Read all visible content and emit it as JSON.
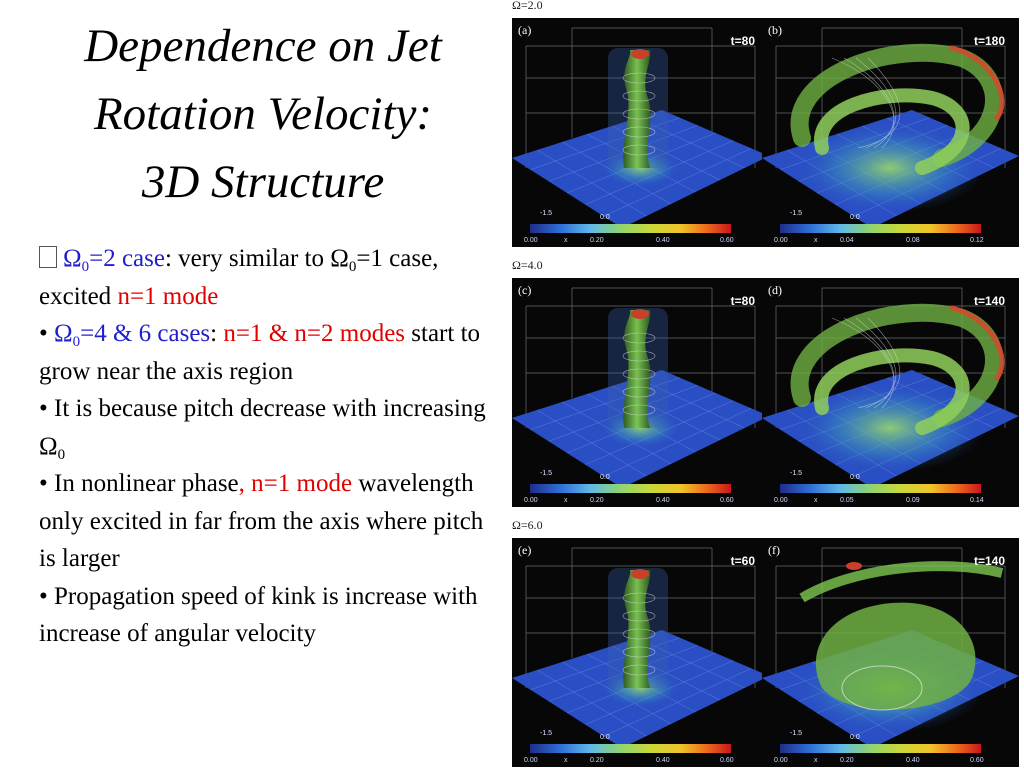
{
  "title": {
    "line1": "Dependence on Jet",
    "line2": "Rotation Velocity:",
    "line3": "3D Structure"
  },
  "bullets": {
    "b1": {
      "omega": "Ω",
      "sub0": "0",
      "case_value": "=2 case",
      "text_a": ": very similar to ",
      "omega_b": "Ω",
      "sub0_b": "0",
      "text_b": "=1 case,  excited ",
      "mode": "n=1 mode"
    },
    "b2": {
      "bullet": "• ",
      "omega": "Ω",
      "sub0": "0",
      "cases": "=4 & 6 cases",
      "colon": ": ",
      "modes": "n=1 & n=2 modes",
      "rest": " start to grow near the axis region"
    },
    "b3": {
      "text": "• It is because pitch decrease with increasing ",
      "omega": "Ω",
      "sub0": "0"
    },
    "b4": {
      "text_a": "• In nonlinear phase",
      "mode": ", n=1 mode",
      "text_b": " wavelength only excited in far from the axis where pitch is larger"
    },
    "b5": {
      "text": "• Propagation speed of kink is increase with increase of angular velocity"
    }
  },
  "figure": {
    "rows": [
      {
        "label": "Ω=2.0",
        "panels": [
          {
            "letter": "(a)",
            "time": "t=80",
            "ticks": [
              "0.00",
              "0.20",
              "0.40",
              "0.60"
            ],
            "axis_a": "-1.5",
            "axis_b": "0.0",
            "axis_x": "x"
          },
          {
            "letter": "(b)",
            "time": "t=180",
            "ticks": [
              "0.00",
              "0.04",
              "0.08",
              "0.12"
            ],
            "axis_a": "-1.5",
            "axis_b": "0.0",
            "axis_x": "x"
          }
        ]
      },
      {
        "label": "Ω=4.0",
        "panels": [
          {
            "letter": "(c)",
            "time": "t=80",
            "ticks": [
              "0.00",
              "0.20",
              "0.40",
              "0.60"
            ],
            "axis_a": "-1.5",
            "axis_b": "0.0",
            "axis_x": "x"
          },
          {
            "letter": "(d)",
            "time": "t=140",
            "ticks": [
              "0.00",
              "0.05",
              "0.09",
              "0.14"
            ],
            "axis_a": "-1.5",
            "axis_b": "0.0",
            "axis_x": "x"
          }
        ]
      },
      {
        "label": "Ω=6.0",
        "panels": [
          {
            "letter": "(e)",
            "time": "t=60",
            "ticks": [
              "0.00",
              "0.20",
              "0.40",
              "0.60"
            ],
            "axis_a": "-1.5",
            "axis_b": "0.0",
            "axis_x": "x"
          },
          {
            "letter": "(f)",
            "time": "t=140",
            "ticks": [
              "0.00",
              "0.20",
              "0.40",
              "0.60"
            ],
            "axis_a": "-1.5",
            "axis_b": "0.0",
            "axis_x": "x"
          }
        ]
      }
    ]
  },
  "colors": {
    "blue_text": "#1f1fcc",
    "red_text": "#e00000",
    "panel_background": "#070707",
    "plane_blue": "#2a4fc4",
    "jet_green": "#7ec850"
  }
}
